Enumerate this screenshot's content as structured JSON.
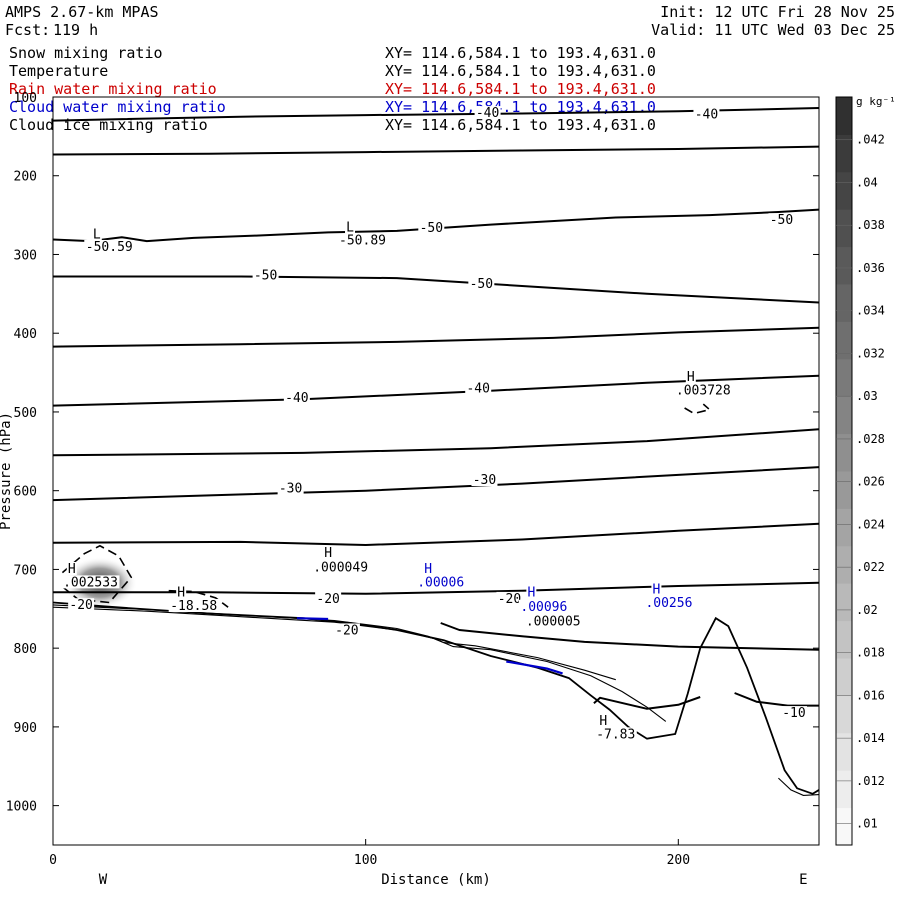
{
  "header": {
    "model": "AMPS 2.67-km MPAS",
    "fcst_label": "Fcst:",
    "fcst_value": "119 h",
    "init": "Init: 12 UTC Fri 28 Nov 25",
    "valid": "Valid: 11 UTC Wed 03 Dec 25"
  },
  "fields": [
    {
      "name": "Snow mixing ratio",
      "xy": "XY= 114.6,584.1 to 193.4,631.0",
      "color": "#000000"
    },
    {
      "name": "Temperature",
      "xy": "XY= 114.6,584.1 to 193.4,631.0",
      "color": "#000000"
    },
    {
      "name": "Rain water mixing ratio",
      "xy": "XY= 114.6,584.1 to 193.4,631.0",
      "color": "#cc0000"
    },
    {
      "name": "Cloud water mixing ratio",
      "xy": "XY= 114.6,584.1 to 193.4,631.0",
      "color": "#0000cc"
    },
    {
      "name": "Cloud ice mixing ratio",
      "xy": "XY= 114.6,584.1 to 193.4,631.0",
      "color": "#000000"
    }
  ],
  "chart_data": {
    "type": "cross-section contour",
    "xlabel": "Distance (km)",
    "ylabel": "Pressure (hPa)",
    "xlim": [
      0,
      245
    ],
    "ylim": [
      1050,
      100
    ],
    "x_ticks": [
      0,
      100,
      200
    ],
    "y_ticks": [
      100,
      200,
      300,
      400,
      500,
      600,
      700,
      800,
      900,
      1000
    ],
    "left_label": "W",
    "right_label": "E",
    "colorbar": {
      "unit": "g kg⁻¹",
      "ticks": [
        ".01",
        ".012",
        ".014",
        ".016",
        ".018",
        ".02",
        ".022",
        ".024",
        ".026",
        ".028",
        ".03",
        ".032",
        ".034",
        ".036",
        ".038",
        ".04",
        ".042"
      ],
      "min": 0.009,
      "max": 0.044
    },
    "isotherms": [
      {
        "points": [
          [
            0,
            130
          ],
          [
            60,
            125
          ],
          [
            100,
            123
          ],
          [
            150,
            121
          ],
          [
            200,
            118
          ],
          [
            235,
            115
          ],
          [
            245,
            114
          ]
        ]
      },
      {
        "points": [
          [
            0,
            173
          ],
          [
            50,
            172
          ],
          [
            100,
            170
          ],
          [
            150,
            168
          ],
          [
            200,
            166
          ],
          [
            245,
            163
          ]
        ]
      },
      {
        "points": [
          [
            0,
            281
          ],
          [
            12,
            283
          ],
          [
            22,
            278
          ],
          [
            30,
            283
          ],
          [
            45,
            279
          ],
          [
            65,
            276
          ],
          [
            88,
            272
          ],
          [
            110,
            270
          ],
          [
            140,
            262
          ],
          [
            180,
            253
          ],
          [
            210,
            250
          ],
          [
            232,
            246
          ],
          [
            245,
            243
          ]
        ]
      },
      {
        "points": [
          [
            0,
            328
          ],
          [
            60,
            328
          ],
          [
            110,
            330
          ],
          [
            150,
            340
          ],
          [
            190,
            350
          ],
          [
            245,
            361
          ]
        ]
      },
      {
        "points": [
          [
            0,
            417
          ],
          [
            60,
            414
          ],
          [
            110,
            411
          ],
          [
            160,
            406
          ],
          [
            200,
            399
          ],
          [
            245,
            393
          ]
        ]
      },
      {
        "points": [
          [
            0,
            492
          ],
          [
            80,
            484
          ],
          [
            140,
            473
          ],
          [
            190,
            463
          ],
          [
            245,
            454
          ]
        ]
      },
      {
        "points": [
          [
            0,
            555
          ],
          [
            80,
            552
          ],
          [
            140,
            546
          ],
          [
            190,
            537
          ],
          [
            245,
            522
          ]
        ]
      },
      {
        "points": [
          [
            0,
            612
          ],
          [
            50,
            606
          ],
          [
            100,
            600
          ],
          [
            150,
            591
          ],
          [
            200,
            580
          ],
          [
            245,
            570
          ]
        ]
      },
      {
        "points": [
          [
            0,
            666
          ],
          [
            60,
            665
          ],
          [
            100,
            669
          ],
          [
            150,
            662
          ],
          [
            200,
            651
          ],
          [
            245,
            642
          ]
        ]
      },
      {
        "points": [
          [
            0,
            729
          ],
          [
            50,
            729
          ],
          [
            100,
            731
          ],
          [
            150,
            727
          ],
          [
            200,
            721
          ],
          [
            245,
            717
          ]
        ]
      },
      {
        "points": [
          [
            124,
            768
          ],
          [
            130,
            777
          ],
          [
            150,
            785
          ],
          [
            170,
            792
          ],
          [
            200,
            798
          ],
          [
            245,
            802
          ]
        ]
      },
      {
        "points": [
          [
            173,
            870
          ],
          [
            175,
            863
          ],
          [
            190,
            877
          ],
          [
            200,
            872
          ],
          [
            207,
            862
          ]
        ]
      },
      {
        "points": [
          [
            218,
            857
          ],
          [
            225,
            868
          ],
          [
            235,
            873
          ],
          [
            245,
            873
          ]
        ]
      }
    ],
    "cloud_ice_contours": [
      {
        "points": [
          [
            3,
            704
          ],
          [
            10,
            680
          ],
          [
            15,
            670
          ],
          [
            21,
            683
          ],
          [
            25,
            710
          ],
          [
            18,
            742
          ],
          [
            8,
            738
          ],
          [
            3,
            722
          ]
        ]
      },
      {
        "points": [
          [
            37,
            727
          ],
          [
            45,
            728
          ],
          [
            52,
            736
          ],
          [
            56,
            748
          ]
        ]
      },
      {
        "points": [
          [
            202,
            495
          ],
          [
            205,
            502
          ],
          [
            210,
            497
          ],
          [
            208,
            490
          ]
        ]
      }
    ],
    "terrain": {
      "points": [
        [
          0,
          742
        ],
        [
          20,
          748
        ],
        [
          50,
          756
        ],
        [
          80,
          762
        ],
        [
          95,
          768
        ],
        [
          110,
          777
        ],
        [
          125,
          790
        ],
        [
          140,
          810
        ],
        [
          155,
          825
        ],
        [
          165,
          838
        ],
        [
          172,
          860
        ],
        [
          178,
          878
        ],
        [
          184,
          900
        ],
        [
          190,
          915
        ],
        [
          199,
          909
        ],
        [
          203,
          858
        ],
        [
          207,
          800
        ],
        [
          212,
          762
        ],
        [
          216,
          772
        ],
        [
          222,
          825
        ],
        [
          228,
          888
        ],
        [
          234,
          955
        ],
        [
          238,
          978
        ],
        [
          243,
          985
        ],
        [
          245,
          980
        ]
      ],
      "ridge_point": [
        212,
        762
      ],
      "surface_lines": [
        {
          "points": [
            [
              0,
              745
            ],
            [
              30,
              751
            ],
            [
              60,
              758
            ],
            [
              90,
              765
            ],
            [
              110,
              775
            ],
            [
              120,
              785
            ],
            [
              125,
              793
            ],
            [
              135,
              797
            ],
            [
              155,
              812
            ],
            [
              170,
              828
            ],
            [
              180,
              840
            ]
          ]
        },
        {
          "points": [
            [
              0,
              748
            ],
            [
              30,
              753
            ],
            [
              60,
              760
            ],
            [
              90,
              767
            ],
            [
              112,
              778
            ],
            [
              122,
              788
            ],
            [
              128,
              798
            ],
            [
              140,
              802
            ],
            [
              158,
              817
            ],
            [
              172,
              835
            ],
            [
              182,
              855
            ],
            [
              190,
              875
            ],
            [
              196,
              893
            ]
          ]
        },
        {
          "points": [
            [
              232,
              965
            ],
            [
              236,
              980
            ],
            [
              240,
              987
            ],
            [
              245,
              986
            ]
          ]
        }
      ],
      "cloud_water_segments": [
        {
          "points": [
            [
              78,
              762
            ],
            [
              88,
              763
            ]
          ]
        },
        {
          "points": [
            [
              145,
              817
            ],
            [
              158,
              826
            ],
            [
              163,
              832
            ]
          ]
        }
      ]
    },
    "shading": [
      {
        "x": 15,
        "p": 717,
        "rx_km": 12,
        "rp": 33,
        "value": 0.044
      }
    ],
    "labels": [
      {
        "text": "-40",
        "x": 139,
        "p": 123,
        "color": "#000000"
      },
      {
        "text": "-40",
        "x": 209,
        "p": 125,
        "color": "#000000"
      },
      {
        "text": "-50",
        "x": 121,
        "p": 269,
        "color": "#000000"
      },
      {
        "text": "-50",
        "x": 233,
        "p": 259,
        "color": "#000000"
      },
      {
        "text": "-50",
        "x": 68,
        "p": 329,
        "color": "#000000"
      },
      {
        "text": "-50",
        "x": 137,
        "p": 340,
        "color": "#000000"
      },
      {
        "text": "-40",
        "x": 78,
        "p": 485,
        "color": "#000000"
      },
      {
        "text": "-40",
        "x": 136,
        "p": 473,
        "color": "#000000"
      },
      {
        "text": "-30",
        "x": 76,
        "p": 600,
        "color": "#000000"
      },
      {
        "text": "-30",
        "x": 138,
        "p": 589,
        "color": "#000000"
      },
      {
        "text": "-20",
        "x": 9,
        "p": 748,
        "color": "#000000"
      },
      {
        "text": "-20",
        "x": 88,
        "p": 740,
        "color": "#000000"
      },
      {
        "text": "-20",
        "x": 146,
        "p": 740,
        "color": "#000000"
      },
      {
        "text": "-20",
        "x": 94,
        "p": 780,
        "color": "#000000"
      },
      {
        "text": "-10",
        "x": 237,
        "p": 885,
        "color": "#000000"
      },
      {
        "text": "L",
        "x": 14,
        "p": 277,
        "color": "#000000"
      },
      {
        "text": "-50.59",
        "x": 18,
        "p": 293,
        "color": "#000000"
      },
      {
        "text": "L",
        "x": 95,
        "p": 268,
        "color": "#000000"
      },
      {
        "text": "-50.89",
        "x": 99,
        "p": 285,
        "color": "#000000"
      },
      {
        "text": "H",
        "x": 204,
        "p": 458,
        "color": "#000000"
      },
      {
        "text": ".003728",
        "x": 208,
        "p": 475,
        "color": "#000000"
      },
      {
        "text": "H",
        "x": 6,
        "p": 702,
        "color": "#000000"
      },
      {
        "text": ".002533",
        "x": 12,
        "p": 719,
        "color": "#000000"
      },
      {
        "text": "H",
        "x": 88,
        "p": 682,
        "color": "#000000"
      },
      {
        "text": ".000049",
        "x": 92,
        "p": 700,
        "color": "#000000"
      },
      {
        "text": "H",
        "x": 41,
        "p": 732,
        "color": "#000000"
      },
      {
        "text": "-18.58",
        "x": 45,
        "p": 749,
        "color": "#000000"
      },
      {
        "text": "H",
        "x": 120,
        "p": 702,
        "color": "#0000cc"
      },
      {
        "text": ".00006",
        "x": 124,
        "p": 719,
        "color": "#0000cc"
      },
      {
        "text": "H",
        "x": 153,
        "p": 732,
        "color": "#0000cc"
      },
      {
        "text": ".00096",
        "x": 157,
        "p": 750,
        "color": "#0000cc"
      },
      {
        "text": ".000005",
        "x": 160,
        "p": 769,
        "color": "#000000"
      },
      {
        "text": "H",
        "x": 193,
        "p": 728,
        "color": "#0000cc"
      },
      {
        "text": ".00256",
        "x": 197,
        "p": 745,
        "color": "#0000cc"
      },
      {
        "text": "H",
        "x": 176,
        "p": 895,
        "color": "#000000"
      },
      {
        "text": "-7.83",
        "x": 180,
        "p": 912,
        "color": "#000000"
      }
    ]
  }
}
